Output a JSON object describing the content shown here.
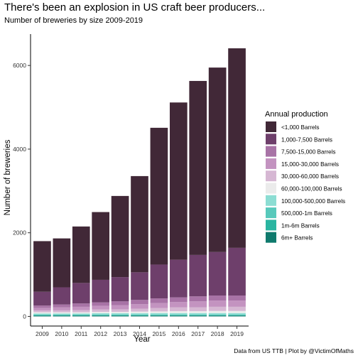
{
  "chart_data": {
    "type": "bar",
    "stacked": true,
    "title": "There's been an explosion in US craft beer producers...",
    "subtitle": "Number of breweries by size 2009-2019",
    "xlabel": "Year",
    "ylabel": "Number of breweries",
    "caption": "Data from US TTB | Plot by @VictimOfMaths",
    "ylim": [
      -230,
      6750
    ],
    "yticks": [
      0,
      2000,
      4000,
      6000
    ],
    "grid": false,
    "legend_position": "right",
    "legend_title": "Annual production",
    "categories": [
      "2009",
      "2010",
      "2011",
      "2012",
      "2013",
      "2014",
      "2015",
      "2016",
      "2017",
      "2018",
      "2019"
    ],
    "series": [
      {
        "name": "6m+ Barrels",
        "color": "#0f7a6d",
        "values": [
          20,
          20,
          20,
          20,
          20,
          20,
          20,
          20,
          20,
          20,
          20
        ]
      },
      {
        "name": "1m-6m Barrels",
        "color": "#2ab5a1",
        "values": [
          15,
          15,
          15,
          15,
          15,
          15,
          15,
          15,
          15,
          15,
          15
        ]
      },
      {
        "name": "500,000-1m Barrels",
        "color": "#57c9bb",
        "values": [
          10,
          10,
          10,
          10,
          10,
          10,
          10,
          10,
          10,
          10,
          10
        ]
      },
      {
        "name": "100,000-500,000 Barrels",
        "color": "#8cddd3",
        "values": [
          25,
          25,
          25,
          30,
          30,
          30,
          35,
          35,
          35,
          35,
          35
        ]
      },
      {
        "name": "60,000-100,000 Barrels",
        "color": "#ebebeb",
        "values": [
          30,
          30,
          30,
          35,
          35,
          40,
          40,
          45,
          45,
          50,
          50
        ]
      },
      {
        "name": "30,000-60,000 Barrels",
        "color": "#d6b7d3",
        "values": [
          40,
          45,
          50,
          55,
          60,
          70,
          80,
          90,
          95,
          100,
          100
        ]
      },
      {
        "name": "15,000-30,000 Barrels",
        "color": "#c393c0",
        "values": [
          60,
          70,
          80,
          90,
          100,
          110,
          120,
          130,
          140,
          150,
          150
        ]
      },
      {
        "name": "7,500-15,000 Barrels",
        "color": "#a873a6",
        "values": [
          60,
          70,
          80,
          80,
          90,
          100,
          110,
          110,
          120,
          120,
          120
        ]
      },
      {
        "name": "1,000-7,500 Barrels",
        "color": "#6e3f6b",
        "values": [
          330,
          410,
          490,
          540,
          580,
          660,
          810,
          900,
          990,
          1040,
          1140
        ]
      },
      {
        "name": "<1,000 Barrels",
        "color": "#412837",
        "values": [
          1210,
          1170,
          1350,
          1620,
          1940,
          2300,
          3270,
          3760,
          4160,
          4410,
          4770
        ]
      }
    ],
    "legend_order": [
      "<1,000 Barrels",
      "1,000-7,500 Barrels",
      "7,500-15,000 Barrels",
      "15,000-30,000 Barrels",
      "30,000-60,000 Barrels",
      "60,000-100,000 Barrels",
      "100,000-500,000 Barrels",
      "500,000-1m Barrels",
      "1m-6m Barrels",
      "6m+ Barrels"
    ]
  }
}
